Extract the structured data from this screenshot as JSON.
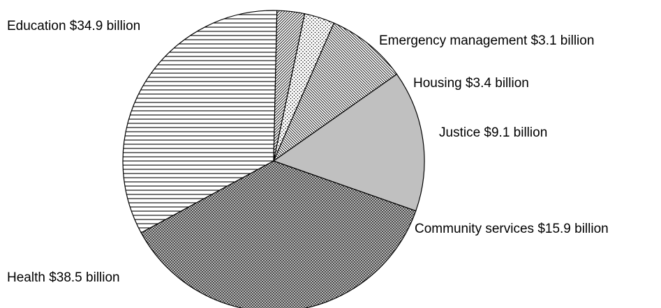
{
  "chart_data": {
    "type": "pie",
    "title": "",
    "unit": "$ billion",
    "slices": [
      {
        "name": "Education",
        "value": 34.9,
        "label": "Education $34.9 billion",
        "pattern": "hlines"
      },
      {
        "name": "Emergency management",
        "value": 3.1,
        "label": "Emergency management $3.1 billion",
        "pattern": "dense-diagonal"
      },
      {
        "name": "Housing",
        "value": 3.4,
        "label": "Housing $3.4 billion",
        "pattern": "dots"
      },
      {
        "name": "Justice",
        "value": 9.1,
        "label": "Justice $9.1 billion",
        "pattern": "diagonal"
      },
      {
        "name": "Community services",
        "value": 15.9,
        "label": "Community services $15.9 billion",
        "pattern": "solid-gray"
      },
      {
        "name": "Health",
        "value": 38.5,
        "label": "Health $38.5 billion",
        "pattern": "crosshatch"
      }
    ],
    "colors": {
      "solid_gray": "#c0c0c0",
      "line": "#000000",
      "background": "#ffffff"
    },
    "legend": "none"
  }
}
